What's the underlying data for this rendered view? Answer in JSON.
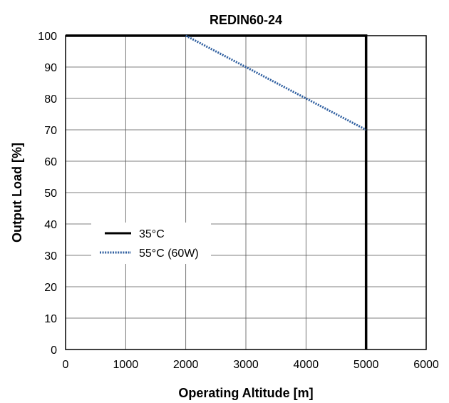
{
  "chart_data": {
    "type": "line",
    "title": "REDIN60-24",
    "xlabel": "Operating Altitude [m]",
    "ylabel": "Output Load [%]",
    "xlim": [
      0,
      6000
    ],
    "ylim": [
      0,
      100
    ],
    "xticks": [
      0,
      1000,
      2000,
      3000,
      4000,
      5000,
      6000
    ],
    "yticks": [
      0,
      10,
      20,
      30,
      40,
      50,
      60,
      70,
      80,
      90,
      100
    ],
    "grid": true,
    "legend_position": "center-left",
    "series": [
      {
        "name": "35°C",
        "style": "solid",
        "color": "#000000",
        "x": [
          0,
          5000,
          5000
        ],
        "y": [
          100,
          100,
          0
        ]
      },
      {
        "name": "55°C (60W)",
        "style": "dotted",
        "color": "#2f5fa0",
        "x": [
          2000,
          5000
        ],
        "y": [
          100,
          70
        ]
      }
    ]
  }
}
